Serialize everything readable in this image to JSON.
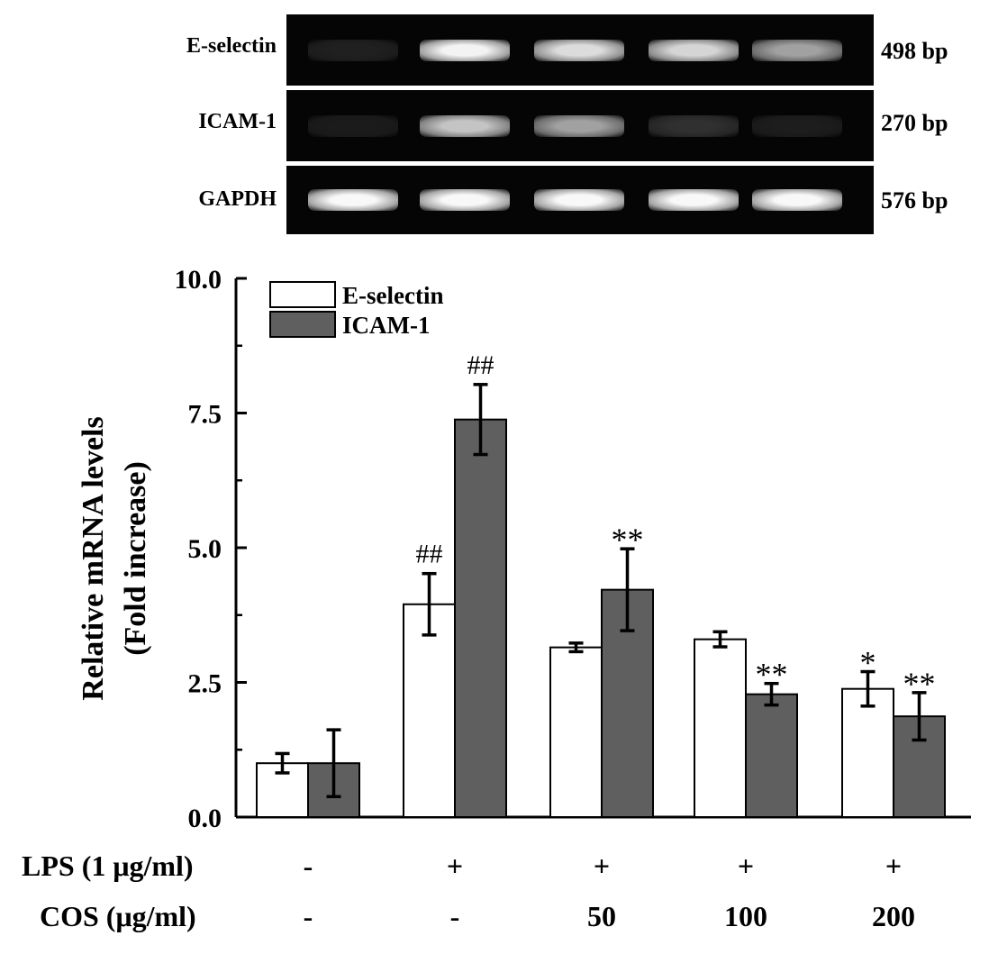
{
  "gel": {
    "rows": [
      {
        "label": "E-selectin",
        "size": "498 bp",
        "intensity": [
          0.05,
          0.95,
          0.85,
          0.82,
          0.6
        ]
      },
      {
        "label": "ICAM-1",
        "size": "270 bp",
        "intensity": [
          0.03,
          0.75,
          0.6,
          0.12,
          0.04
        ]
      },
      {
        "label": "GAPDH",
        "size": "576 bp",
        "intensity": [
          0.97,
          0.97,
          0.97,
          0.97,
          0.97
        ]
      }
    ]
  },
  "chart_data": {
    "type": "bar",
    "ylabel_line1": "Relative mRNA levels",
    "ylabel_line2": "(Fold increase)",
    "ylim": [
      0,
      10
    ],
    "yticks": [
      "0.0",
      "2.5",
      "5.0",
      "7.5",
      "10.0"
    ],
    "ytick_values": [
      0,
      2.5,
      5.0,
      7.5,
      10.0
    ],
    "groups": 5,
    "series": [
      {
        "name": "E-selectin",
        "color": "#ffffff",
        "values": [
          1.0,
          3.95,
          3.15,
          3.3,
          2.38
        ],
        "errors": [
          0.18,
          0.57,
          0.08,
          0.14,
          0.32
        ],
        "annotations": [
          "",
          "##",
          "",
          "",
          "*"
        ]
      },
      {
        "name": "ICAM-1",
        "color": "#5f5f5f",
        "values": [
          1.0,
          7.38,
          4.22,
          2.28,
          1.87
        ],
        "errors": [
          0.62,
          0.65,
          0.76,
          0.2,
          0.44
        ],
        "annotations": [
          "",
          "##",
          "**",
          "**",
          "**"
        ]
      }
    ],
    "legend_position": "top-left"
  },
  "conditions": {
    "lps_label": "LPS (1 μg/ml)",
    "lps_values": [
      "-",
      "+",
      "+",
      "+",
      "+"
    ],
    "cos_label": "COS (μg/ml)",
    "cos_values": [
      "-",
      "-",
      "50",
      "100",
      "200"
    ]
  }
}
